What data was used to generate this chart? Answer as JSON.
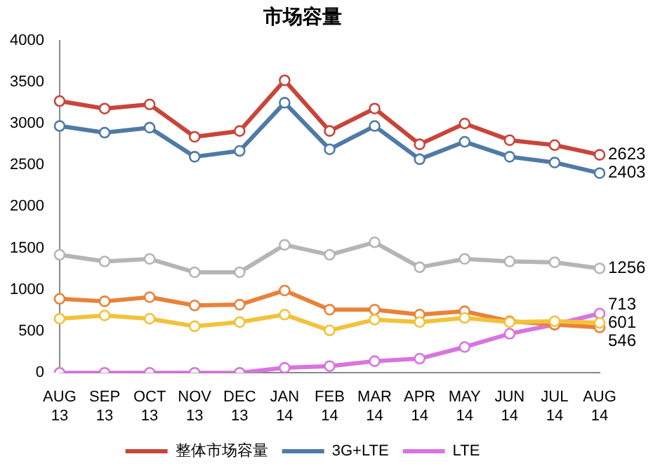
{
  "chart_data": {
    "type": "line",
    "title": "市场容量",
    "categories": [
      "AUG 13",
      "SEP 13",
      "OCT 13",
      "NOV 13",
      "DEC 13",
      "JAN 14",
      "FEB 14",
      "MAR 14",
      "APR 14",
      "MAY 14",
      "JUN 14",
      "JUL 14",
      "AUG 14"
    ],
    "ylim": [
      0,
      4000
    ],
    "yticks": [
      0,
      500,
      1000,
      1500,
      2000,
      2500,
      3000,
      3500,
      4000
    ],
    "grid": false,
    "legend": "bottom",
    "marker": "circle",
    "line_style": "solid",
    "series": [
      {
        "name": "整体市场容量",
        "color": "#c8453a",
        "values": [
          3270,
          3180,
          3230,
          2840,
          2910,
          3520,
          2910,
          3180,
          2750,
          3000,
          2800,
          2740,
          2623
        ],
        "value_labels": [
          null,
          null,
          null,
          null,
          null,
          null,
          null,
          null,
          null,
          null,
          null,
          null,
          "2623"
        ]
      },
      {
        "name": "3G+LTE",
        "color": "#4f7aa6",
        "values": [
          2970,
          2890,
          2950,
          2600,
          2670,
          3250,
          2690,
          2970,
          2570,
          2780,
          2600,
          2530,
          2403
        ],
        "value_labels": [
          null,
          null,
          null,
          null,
          null,
          null,
          null,
          null,
          null,
          null,
          null,
          null,
          "2403"
        ]
      },
      {
        "color": "#b5b5b5",
        "values": [
          1420,
          1340,
          1370,
          1210,
          1210,
          1540,
          1420,
          1570,
          1270,
          1370,
          1340,
          1330,
          1256
        ],
        "value_labels": [
          null,
          null,
          null,
          null,
          null,
          null,
          null,
          null,
          null,
          null,
          null,
          null,
          "1256"
        ]
      },
      {
        "color": "#f2c23a",
        "values": [
          650,
          690,
          650,
          560,
          610,
          700,
          510,
          640,
          610,
          660,
          610,
          620,
          601
        ],
        "value_labels": [
          null,
          null,
          null,
          null,
          null,
          null,
          null,
          null,
          null,
          null,
          null,
          null,
          "601"
        ]
      },
      {
        "color": "#e8823a",
        "values": [
          890,
          860,
          910,
          810,
          820,
          990,
          760,
          760,
          700,
          740,
          620,
          580,
          546
        ],
        "value_labels": [
          null,
          null,
          null,
          null,
          null,
          null,
          null,
          null,
          null,
          null,
          null,
          null,
          "546"
        ]
      },
      {
        "name": "LTE",
        "color": "#d874e0",
        "values": [
          0,
          0,
          0,
          0,
          0,
          60,
          80,
          140,
          170,
          310,
          470,
          580,
          713
        ],
        "value_labels": [
          null,
          null,
          null,
          null,
          null,
          null,
          null,
          null,
          null,
          null,
          null,
          null,
          "713"
        ]
      }
    ]
  }
}
